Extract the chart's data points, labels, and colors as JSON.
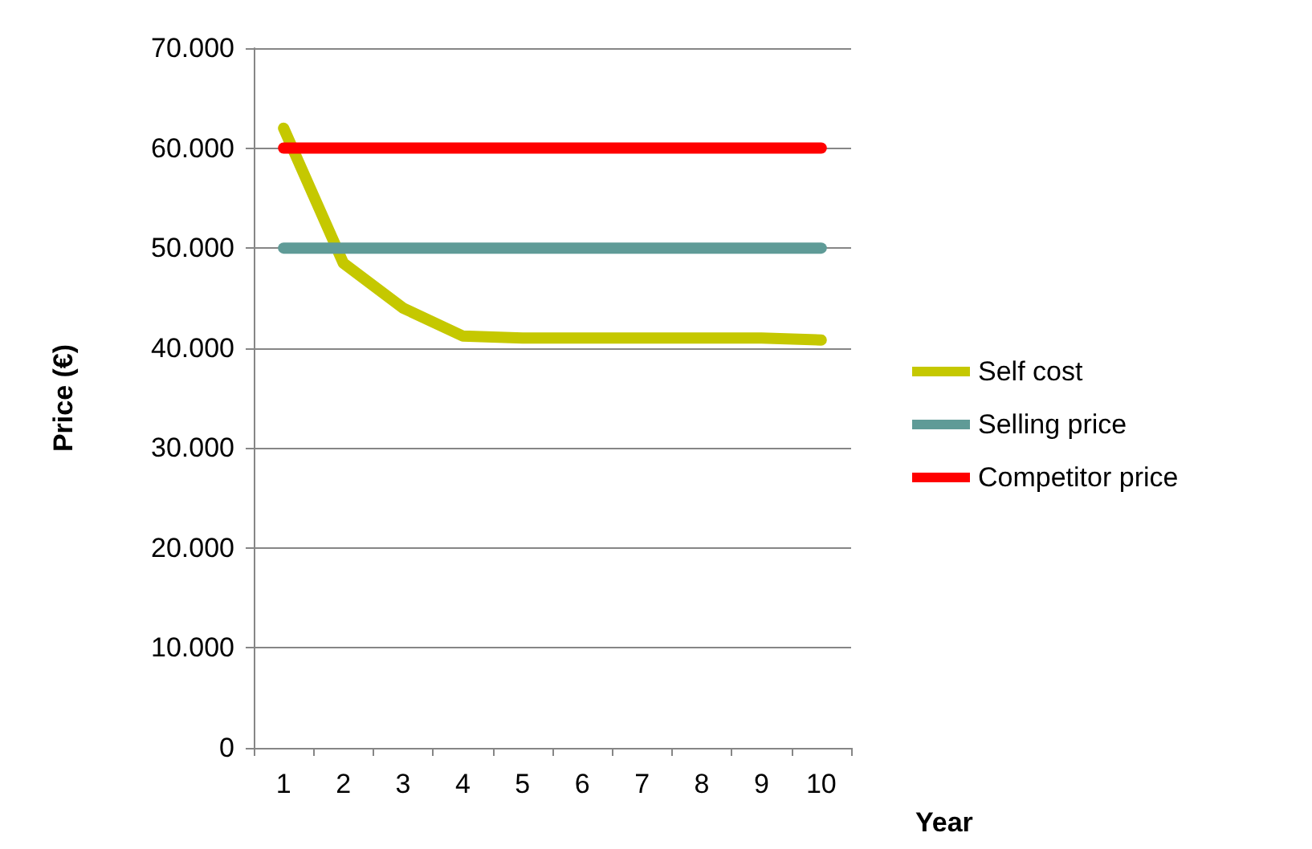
{
  "chart_data": {
    "type": "line",
    "xlabel": "Year",
    "ylabel": "Price (€)",
    "categories": [
      "1",
      "2",
      "3",
      "4",
      "5",
      "6",
      "7",
      "8",
      "9",
      "10"
    ],
    "series": [
      {
        "name": "Self cost",
        "color": "#c5c800",
        "values": [
          62000,
          48500,
          44000,
          41200,
          41000,
          41000,
          41000,
          41000,
          41000,
          40800
        ]
      },
      {
        "name": "Selling price",
        "color": "#5f9b97",
        "values": [
          50000,
          50000,
          50000,
          50000,
          50000,
          50000,
          50000,
          50000,
          50000,
          50000
        ]
      },
      {
        "name": "Competitor price",
        "color": "#ff0000",
        "values": [
          60000,
          60000,
          60000,
          60000,
          60000,
          60000,
          60000,
          60000,
          60000,
          60000
        ]
      }
    ],
    "ylim": [
      0,
      70000
    ],
    "yticks": [
      0,
      {
        "value": 10000,
        "label": "10.000"
      },
      {
        "value": 20000,
        "label": "20.000"
      },
      {
        "value": 30000,
        "label": "30.000"
      },
      {
        "value": 40000,
        "label": "40.000"
      },
      {
        "value": 50000,
        "label": "50.000"
      },
      {
        "value": 60000,
        "label": "60.000"
      },
      {
        "value": 70000,
        "label": "70.000"
      }
    ],
    "grid": "y",
    "legend": "right",
    "line_style": "solid"
  }
}
